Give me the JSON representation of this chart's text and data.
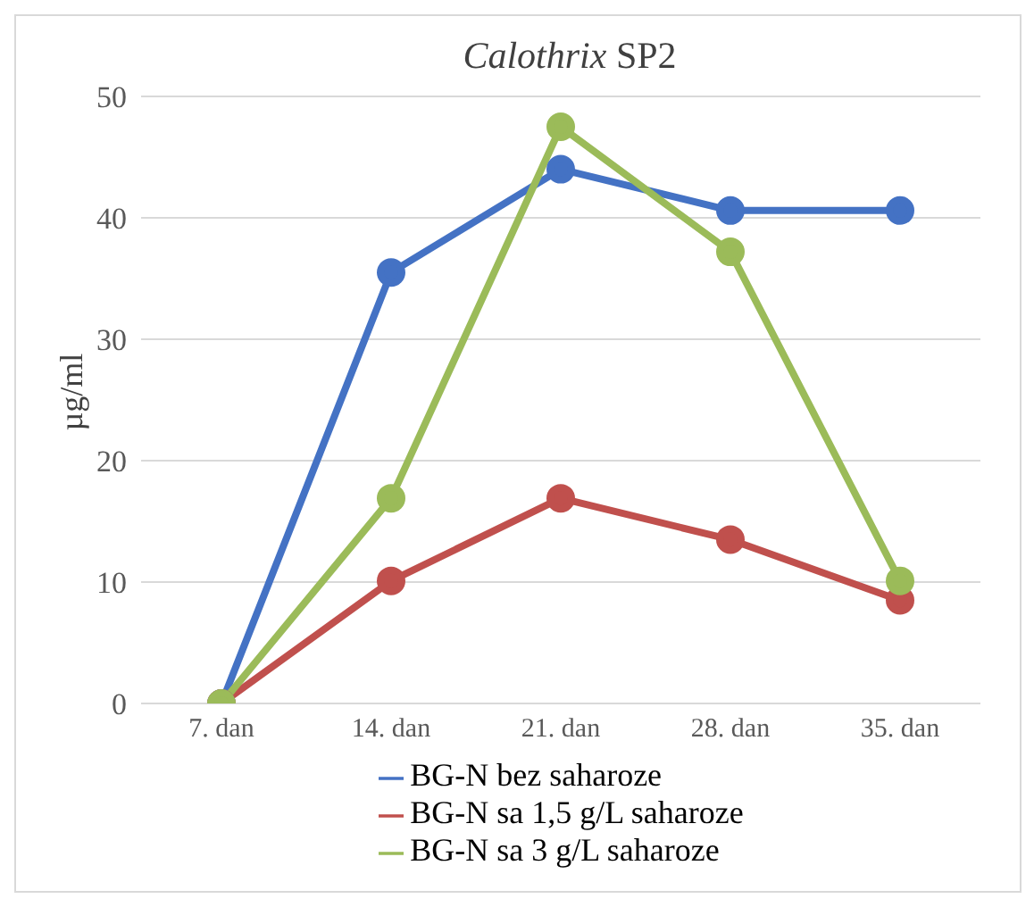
{
  "chart_data": {
    "type": "line",
    "title": "Calothrix SP2",
    "ylabel": "µg/ml",
    "categories": [
      "7. dan",
      "14. dan",
      "21. dan",
      "28. dan",
      "35. dan"
    ],
    "series": [
      {
        "name": "BG-N bez saharoze",
        "color": "#4472c4",
        "values": [
          0,
          35.5,
          44,
          40.6,
          40.6
        ]
      },
      {
        "name": "BG-N sa 1,5 g/L saharoze",
        "color": "#c0504d",
        "values": [
          0,
          10.1,
          16.9,
          13.5,
          8.5
        ]
      },
      {
        "name": "BG-N sa 3 g/L saharoze",
        "color": "#9bbb59",
        "values": [
          0,
          16.9,
          47.5,
          37.2,
          10.1
        ]
      }
    ],
    "ylim": [
      0,
      50
    ],
    "yticks": [
      0,
      10,
      20,
      30,
      40,
      50
    ],
    "grid": "y",
    "legend": "bottom",
    "marker": "circle",
    "line_style": "solid"
  }
}
